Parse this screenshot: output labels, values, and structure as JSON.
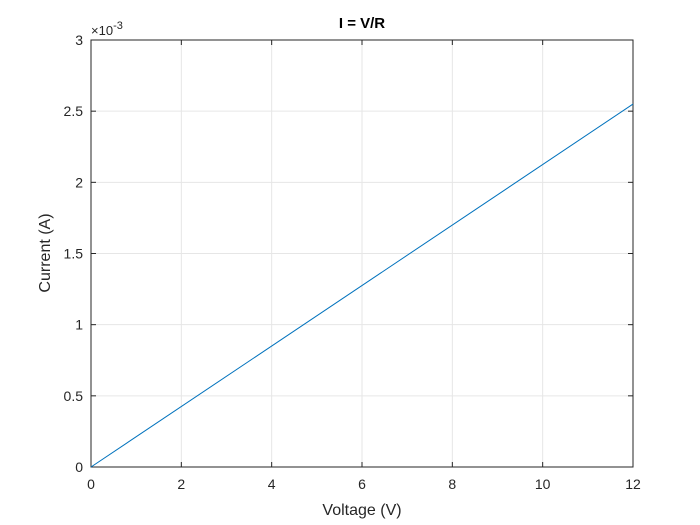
{
  "chart_data": {
    "type": "line",
    "title": "I = V/R",
    "xlabel": "Voltage (V)",
    "ylabel": "Current (A)",
    "xlim": [
      0,
      12
    ],
    "ylim": [
      0,
      0.003
    ],
    "xticks": [
      0,
      2,
      4,
      6,
      8,
      10,
      12
    ],
    "xtick_labels": [
      "0",
      "2",
      "4",
      "6",
      "8",
      "10",
      "12"
    ],
    "yticks": [
      0,
      0.0005,
      0.001,
      0.0015,
      0.002,
      0.0025,
      0.003
    ],
    "ytick_labels": [
      "0",
      "0.5",
      "1",
      "1.5",
      "2",
      "2.5",
      "3"
    ],
    "y_exponent_base": "×10",
    "y_exponent_power": "-3",
    "grid": true,
    "series": [
      {
        "color": "#0072bd",
        "x": [
          0,
          12
        ],
        "y": [
          0,
          0.00255
        ]
      }
    ]
  }
}
